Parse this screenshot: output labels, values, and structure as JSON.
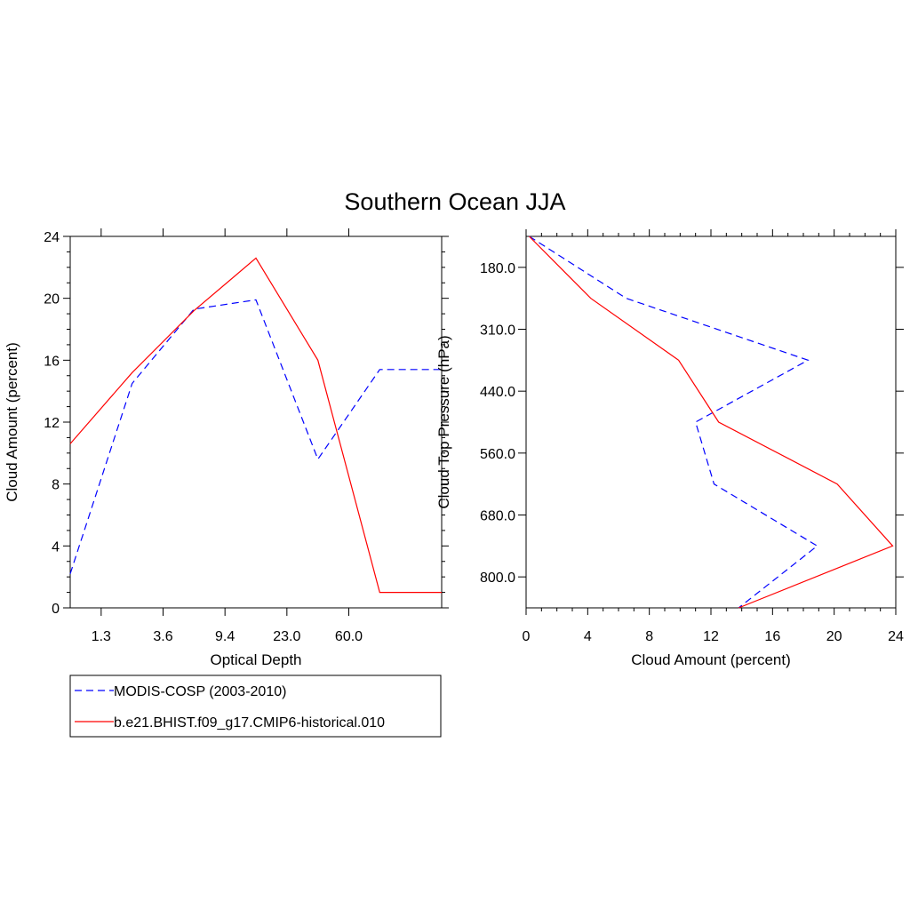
{
  "title": "Southern Ocean JJA",
  "legend": [
    {
      "name": "MODIS-COSP (2003-2010)",
      "color": "#0000ff",
      "dash": "dashed"
    },
    {
      "name": "b.e21.BHIST.f09_g17.CMIP6-historical.010",
      "color": "#ff0000",
      "dash": "solid"
    }
  ],
  "chart_data": [
    {
      "type": "line",
      "xlabel": "Optical Depth",
      "ylabel": "Cloud Amount (percent)",
      "x_tick_labels": [
        "1.3",
        "3.6",
        "9.4",
        "23.0",
        "60.0"
      ],
      "x_index_range": [
        0,
        6
      ],
      "x_tick_positions": [
        0.5,
        1.5,
        2.5,
        3.5,
        4.5
      ],
      "ylim": [
        0,
        24
      ],
      "y_ticks": [
        0,
        4,
        8,
        12,
        16,
        20,
        24
      ],
      "series": [
        {
          "name": "MODIS-COSP (2003-2010)",
          "x": [
            0,
            1,
            2,
            3,
            4,
            5,
            6
          ],
          "values": [
            2.2,
            14.5,
            19.3,
            19.9,
            9.6,
            15.4,
            15.4
          ]
        },
        {
          "name": "b.e21.BHIST.f09_g17.CMIP6-historical.010",
          "x": [
            0,
            1,
            2,
            3,
            4,
            5,
            6
          ],
          "values": [
            10.6,
            15.2,
            19.2,
            22.6,
            16.0,
            1.0,
            1.0
          ]
        }
      ]
    },
    {
      "type": "line",
      "xlabel": "Cloud Amount (percent)",
      "ylabel": "Cloud Top Pressure (hPa)",
      "xlim": [
        0,
        24
      ],
      "x_ticks": [
        0,
        4,
        8,
        12,
        16,
        20,
        24
      ],
      "y_tick_labels": [
        "180.0",
        "310.0",
        "440.0",
        "560.0",
        "680.0",
        "800.0"
      ],
      "y_index_range": [
        0,
        6
      ],
      "y_tick_positions": [
        0.5,
        1.5,
        2.5,
        3.5,
        4.5,
        5.5
      ],
      "series": [
        {
          "name": "MODIS-COSP (2003-2010)",
          "y": [
            0,
            1,
            2,
            3,
            4,
            5,
            6
          ],
          "values": [
            0.2,
            6.5,
            18.3,
            11.0,
            12.2,
            18.9,
            13.8
          ]
        },
        {
          "name": "b.e21.BHIST.f09_g17.CMIP6-historical.010",
          "y": [
            0,
            1,
            2,
            3,
            4,
            5,
            6
          ],
          "values": [
            0.2,
            4.2,
            9.9,
            12.5,
            20.2,
            23.8,
            13.8
          ]
        }
      ]
    }
  ]
}
